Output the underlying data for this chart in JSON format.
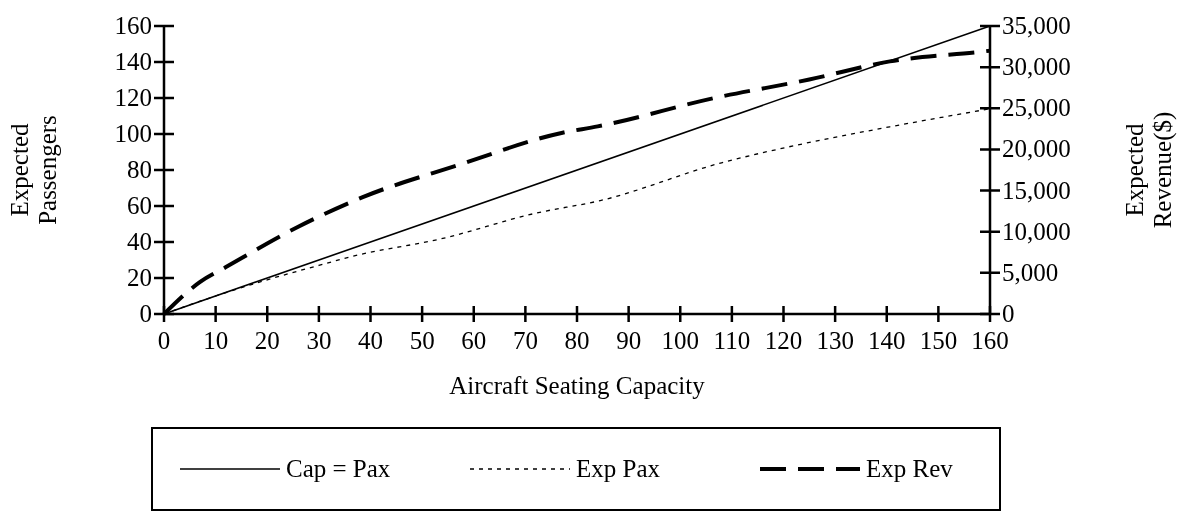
{
  "chart_data": {
    "type": "line",
    "xlabel": "Aircraft Seating Capacity",
    "ylabel": "Expected Passengers",
    "y2label": "Expected Revenue($)",
    "xlim": [
      0,
      160
    ],
    "xticks": [
      0,
      10,
      20,
      30,
      40,
      50,
      60,
      70,
      80,
      90,
      100,
      110,
      120,
      130,
      140,
      150,
      160
    ],
    "ylim": [
      0,
      160
    ],
    "yticks": [
      0,
      20,
      40,
      60,
      80,
      100,
      120,
      140,
      160
    ],
    "y2lim": [
      0,
      35000
    ],
    "y2ticks": [
      {
        "value": 0,
        "label": "0"
      },
      {
        "value": 5000,
        "label": "5,000"
      },
      {
        "value": 10000,
        "label": "10,000"
      },
      {
        "value": 15000,
        "label": "15,000"
      },
      {
        "value": 20000,
        "label": "20,000"
      },
      {
        "value": 25000,
        "label": "25,000"
      },
      {
        "value": 30000,
        "label": "30,000"
      },
      {
        "value": 35000,
        "label": "35,000"
      }
    ],
    "legend": "bottom",
    "grid": false,
    "series": [
      {
        "name": "Cap = Pax",
        "color": "#000000",
        "line_style": "solid",
        "x": [
          0,
          160
        ],
        "values": [
          0,
          160
        ]
      },
      {
        "name": "Exp Pax",
        "color": "#000000",
        "line_style": "dotted",
        "x": [
          0,
          10,
          20,
          30,
          36,
          54,
          72,
          84.5,
          108,
          124.5,
          140.6,
          160
        ],
        "values": [
          0,
          10,
          19,
          27,
          31.7,
          42,
          56,
          63,
          84,
          95,
          104,
          114
        ]
      },
      {
        "name": "Exp Rev",
        "color": "#000000",
        "line_style": "dashed",
        "axis": "y2",
        "x": [
          0,
          7,
          12,
          26,
          38.5,
          57,
          77,
          84,
          107,
          125,
          140.6,
          158.6,
          160
        ],
        "values": [
          0,
          3900,
          5700,
          10600,
          14200,
          18100,
          22000,
          22800,
          26300,
          28500,
          30700,
          31900,
          32000
        ]
      }
    ]
  }
}
